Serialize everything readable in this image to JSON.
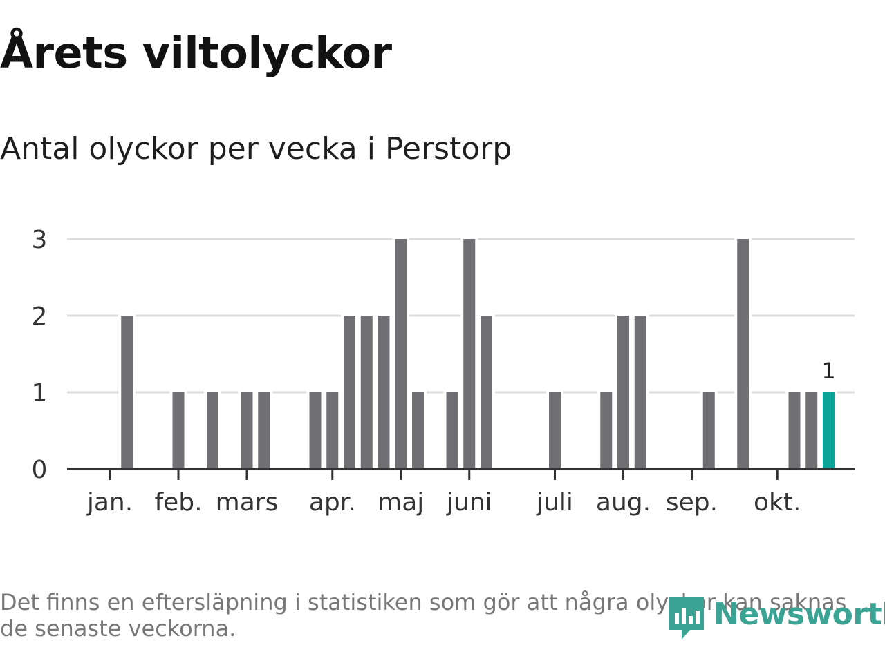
{
  "colors": {
    "bar": "#707074",
    "highlight": "#0aa598",
    "grid": "#dcdcdc",
    "axis": "#333333",
    "brand": "#3aa394"
  },
  "chart_data": {
    "type": "bar",
    "title": "Årets viltolyckor",
    "subtitle": "Antal olyckor per vecka i Perstorp",
    "xlabel": "",
    "ylabel": "",
    "ylim": [
      0,
      3
    ],
    "yticks": [
      "0",
      "1",
      "2",
      "3"
    ],
    "grid": true,
    "weeks": [
      1,
      2,
      3,
      4,
      5,
      6,
      7,
      8,
      9,
      10,
      11,
      12,
      13,
      14,
      15,
      16,
      17,
      18,
      19,
      20,
      21,
      22,
      23,
      24,
      25,
      26,
      27,
      28,
      29,
      30,
      31,
      32,
      33,
      34,
      35,
      36,
      37,
      38,
      39,
      40,
      41,
      42,
      43
    ],
    "values": [
      0,
      2,
      0,
      0,
      1,
      0,
      1,
      0,
      1,
      1,
      0,
      0,
      1,
      1,
      2,
      2,
      2,
      3,
      1,
      0,
      1,
      3,
      2,
      0,
      0,
      0,
      1,
      0,
      0,
      1,
      2,
      2,
      0,
      0,
      0,
      1,
      0,
      3,
      0,
      0,
      1,
      1,
      1
    ],
    "highlight_index": 42,
    "highlight_label": "1",
    "month_ticks": [
      {
        "label": "jan.",
        "week": 1
      },
      {
        "label": "feb.",
        "week": 5
      },
      {
        "label": "mars",
        "week": 9
      },
      {
        "label": "apr.",
        "week": 14
      },
      {
        "label": "maj",
        "week": 18
      },
      {
        "label": "juni",
        "week": 22
      },
      {
        "label": "juli",
        "week": 27
      },
      {
        "label": "aug.",
        "week": 31
      },
      {
        "label": "sep.",
        "week": 35
      },
      {
        "label": "okt.",
        "week": 40
      }
    ]
  },
  "footnote": "Det finns en eftersläpning i statistiken som gör att några olyckor kan saknas de senaste veckorna.",
  "brand": {
    "name": "Newsworthy",
    "icon": "bar-chart-badge-icon"
  }
}
